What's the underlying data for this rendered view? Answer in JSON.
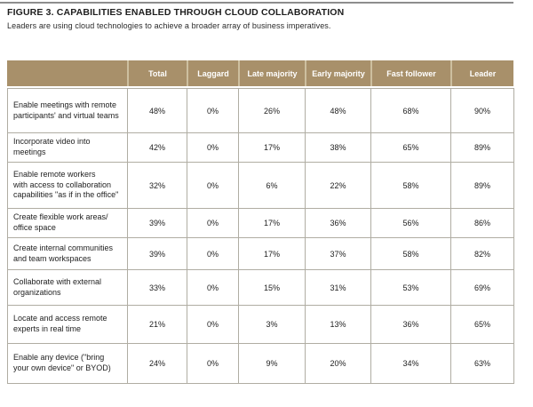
{
  "figure": {
    "title": "FIGURE 3. CAPABILITIES ENABLED THROUGH CLOUD COLLABORATION",
    "subtitle": "Leaders are using cloud technologies to achieve a broader array of business imperatives."
  },
  "colors": {
    "header_bg": "#a8906a",
    "header_divider": "#cdbf9f",
    "header_text": "#ffffff",
    "grid_border": "#b0ada3",
    "body_text": "#222222",
    "top_rule": "#8d8d8d"
  },
  "chart_data": {
    "type": "table",
    "title": "FIGURE 3. CAPABILITIES ENABLED THROUGH CLOUD COLLABORATION",
    "subtitle": "Leaders are using cloud technologies to achieve a broader array of business imperatives.",
    "columns": [
      "",
      "Total",
      "Laggard",
      "Late majority",
      "Early majority",
      "Fast follower",
      "Leader"
    ],
    "rows": [
      {
        "label": "Enable meetings with remote\nparticipants' and virtual teams",
        "values": [
          "48%",
          "0%",
          "26%",
          "48%",
          "68%",
          "90%"
        ]
      },
      {
        "label": "Incorporate video into\nmeetings",
        "values": [
          "42%",
          "0%",
          "17%",
          "38%",
          "65%",
          "89%"
        ]
      },
      {
        "label": "Enable remote workers\nwith access to collaboration\ncapabilities \"as if in the office\"",
        "values": [
          "32%",
          "0%",
          "6%",
          "22%",
          "58%",
          "89%"
        ]
      },
      {
        "label": "Create flexible work areas/\noffice space",
        "values": [
          "39%",
          "0%",
          "17%",
          "36%",
          "56%",
          "86%"
        ]
      },
      {
        "label": "Create internal communities\nand team workspaces",
        "values": [
          "39%",
          "0%",
          "17%",
          "37%",
          "58%",
          "82%"
        ]
      },
      {
        "label": "Collaborate with external\norganizations",
        "values": [
          "33%",
          "0%",
          "15%",
          "31%",
          "53%",
          "69%"
        ]
      },
      {
        "label": "Locate and access remote\nexperts in real time",
        "values": [
          "21%",
          "0%",
          "3%",
          "13%",
          "36%",
          "65%"
        ]
      },
      {
        "label": "Enable any device (\"bring\nyour own device\" or BYOD)",
        "values": [
          "24%",
          "0%",
          "9%",
          "20%",
          "34%",
          "63%"
        ]
      }
    ]
  }
}
